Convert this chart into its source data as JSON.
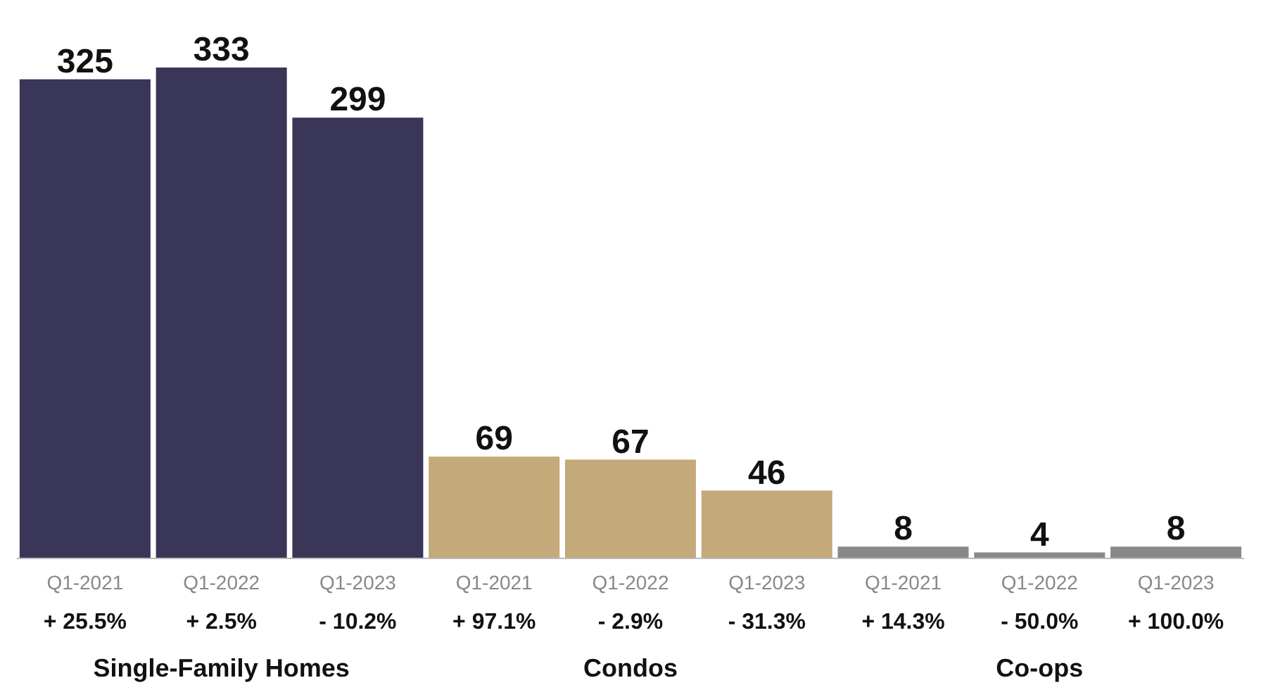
{
  "chart_data": {
    "type": "bar",
    "categories": [
      "Q1-2021",
      "Q1-2022",
      "Q1-2023",
      "Q1-2021",
      "Q1-2022",
      "Q1-2023",
      "Q1-2021",
      "Q1-2022",
      "Q1-2023"
    ],
    "values": [
      325,
      333,
      299,
      69,
      67,
      46,
      8,
      4,
      8
    ],
    "colors": [
      "#3a3658",
      "#3a3658",
      "#3a3658",
      "#c4a97a",
      "#c4a97a",
      "#c4a97a",
      "#888888",
      "#888888",
      "#888888"
    ],
    "data_labels": true,
    "annotations": [
      "+ 25.5%",
      "+ 2.5%",
      "- 10.2%",
      "+ 97.1%",
      "- 2.9%",
      "- 31.3%",
      "+ 14.3%",
      "- 50.0%",
      "+ 100.0%",
      "Single-Family Homes",
      "Condos",
      "Co-ops"
    ]
  }
}
